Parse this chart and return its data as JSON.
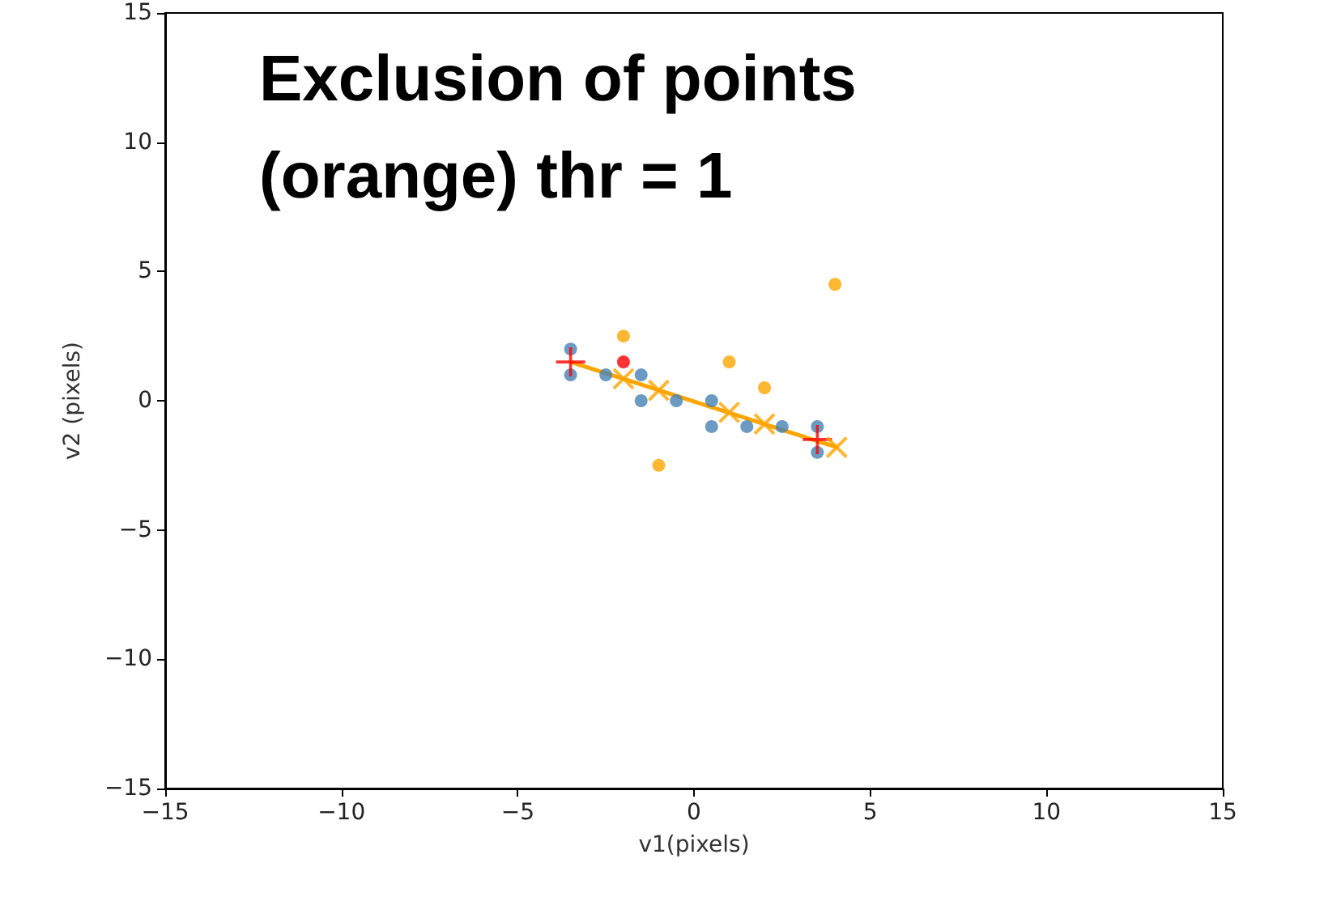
{
  "chart_data": {
    "type": "scatter",
    "title": "Exclusion of points (orange) thr = 1",
    "xlabel": "v1(pixels)",
    "ylabel": "v2 (pixels)",
    "xlim": [
      -15,
      15
    ],
    "xticks": [
      -15,
      -10,
      -5,
      0,
      5,
      10,
      15
    ],
    "ylim": [
      -15,
      15
    ],
    "yticks": [
      -15,
      -10,
      -5,
      0,
      5,
      10,
      15
    ],
    "grid": false,
    "series": [
      {
        "color": "#4682b4",
        "marker": "circle",
        "x": [
          -3.5,
          -3.5,
          -2.5,
          -1.5,
          -1.5,
          -0.5,
          0.5,
          0.5,
          1.5,
          2.5,
          3.5,
          3.5
        ],
        "values": [
          2,
          1,
          1,
          1,
          0,
          0,
          0,
          -1,
          -1,
          -1,
          -1,
          -2
        ]
      },
      {
        "color": "#ffa500",
        "marker": "circle",
        "x": [
          -2,
          1,
          2,
          4,
          -1
        ],
        "values": [
          2.5,
          1.5,
          0.5,
          4.5,
          -2.5
        ]
      },
      {
        "color": "#ff0000",
        "marker": "circle",
        "x": [
          -2
        ],
        "values": [
          1.5
        ]
      },
      {
        "type": "line",
        "color": "#ffa500",
        "marker": "none",
        "x": [
          -3.5,
          4.05
        ],
        "values": [
          1.5,
          -1.8
        ]
      },
      {
        "color": "#ffa500",
        "marker": "x",
        "x": [
          -2,
          -1,
          1,
          2,
          4.05
        ],
        "values": [
          0.85,
          0.4,
          -0.45,
          -0.9,
          -1.8
        ]
      },
      {
        "color": "#ff0000",
        "marker": "cross",
        "x": [
          -3.5,
          3.5
        ],
        "values": [
          1.5,
          -1.5
        ]
      }
    ]
  }
}
